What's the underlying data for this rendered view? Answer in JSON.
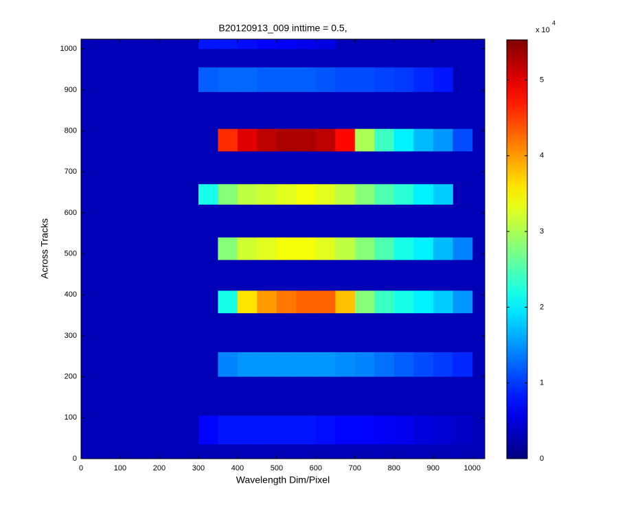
{
  "chart_data": {
    "type": "heatmap",
    "title": "B20120913_009 inttime = 0.5,",
    "xlabel": "Wavelength Dim/Pixel",
    "ylabel": "Across Tracks",
    "xlim": [
      0,
      1032
    ],
    "ylim": [
      0,
      1024
    ],
    "xticks": [
      0,
      100,
      200,
      300,
      400,
      500,
      600,
      700,
      800,
      900,
      1000
    ],
    "yticks": [
      0,
      100,
      200,
      300,
      400,
      500,
      600,
      700,
      800,
      900,
      1000
    ],
    "clim": [
      0,
      55300
    ],
    "cticks": [
      {
        "value": 0,
        "label": "0"
      },
      {
        "value": 10000,
        "label": "1"
      },
      {
        "value": 20000,
        "label": "2"
      },
      {
        "value": 30000,
        "label": "3"
      },
      {
        "value": 40000,
        "label": "4"
      },
      {
        "value": 50000,
        "label": "5"
      }
    ],
    "cbar_multiplier": "x 10",
    "cbar_exponent": "4",
    "colormap": "jet",
    "background": 3000,
    "x_edges": [
      300,
      350,
      400,
      450,
      500,
      550,
      600,
      650,
      700,
      750,
      800,
      850,
      900,
      950,
      1000
    ],
    "rows": [
      {
        "y": [
          35,
          105
        ],
        "values": [
          7000,
          8000,
          8000,
          8000,
          8000,
          8000,
          7500,
          7000,
          7000,
          6500,
          6000,
          5000,
          4500,
          4000
        ]
      },
      {
        "y": [
          200,
          260
        ],
        "values": [
          null,
          14000,
          15000,
          15000,
          15000,
          15000,
          15000,
          14500,
          14000,
          13000,
          12000,
          11000,
          10000,
          9000
        ]
      },
      {
        "y": [
          355,
          410
        ],
        "values": [
          null,
          22000,
          36000,
          40000,
          42000,
          43000,
          43000,
          38000,
          28000,
          24000,
          22000,
          20000,
          18000,
          15000
        ]
      },
      {
        "y": [
          485,
          540
        ],
        "values": [
          null,
          28000,
          32000,
          33000,
          34000,
          34000,
          33000,
          31000,
          28000,
          25000,
          22000,
          20000,
          17000,
          14000
        ]
      },
      {
        "y": [
          620,
          670
        ],
        "values": [
          22000,
          28000,
          31000,
          32000,
          33000,
          34000,
          33000,
          31000,
          28000,
          25000,
          23000,
          20000,
          18000,
          null
        ]
      },
      {
        "y": [
          750,
          805
        ],
        "values": [
          null,
          46000,
          50000,
          52000,
          53000,
          53000,
          52000,
          48000,
          30000,
          24000,
          20000,
          17000,
          15000,
          11000
        ]
      },
      {
        "y": [
          895,
          955
        ],
        "values": [
          12000,
          12500,
          12500,
          12000,
          12000,
          12000,
          11500,
          11000,
          11000,
          10500,
          10000,
          9000,
          8000,
          null
        ]
      },
      {
        "y": [
          1000,
          1024
        ],
        "values": [
          8000,
          8000,
          7500,
          7000,
          6500,
          6000,
          5500,
          null,
          null,
          null,
          null,
          null,
          null,
          null
        ]
      }
    ]
  }
}
